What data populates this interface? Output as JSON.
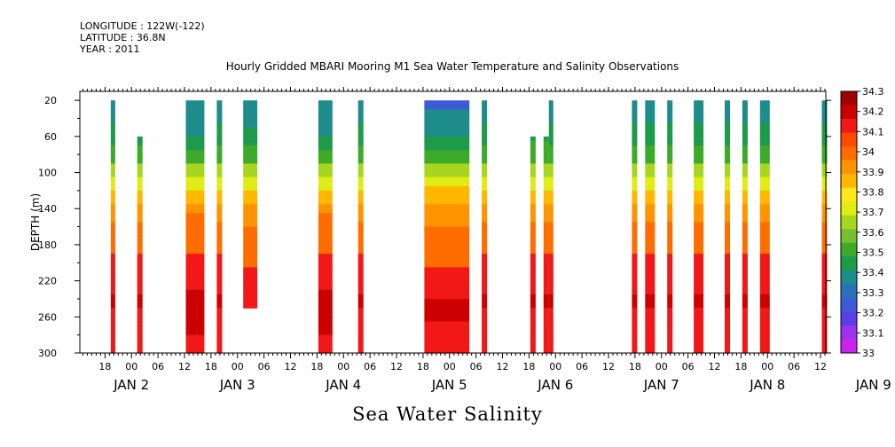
{
  "header": {
    "longitude": "LONGITUDE : 122W(-122)",
    "latitude": "LATITUDE : 36.8N",
    "year": "YEAR : 2011"
  },
  "bottom_title": "Sea Water Salinity",
  "chart_data": {
    "type": "heatmap",
    "title": "Hourly Gridded MBARI Mooring M1 Sea Water Temperature and Salinity Observations",
    "ylabel": "DEPTH (m)",
    "ylim": [
      300,
      10
    ],
    "y_ticks": [
      20,
      60,
      100,
      140,
      180,
      220,
      260,
      300
    ],
    "x_unit": "hours since JAN 1 2011 00:00",
    "xlim": [
      36.3,
      205.2
    ],
    "x_hour_ticks": [
      {
        "t": 42,
        "label": "18"
      },
      {
        "t": 48,
        "label": "00"
      },
      {
        "t": 54,
        "label": "06"
      },
      {
        "t": 60,
        "label": "12"
      },
      {
        "t": 66,
        "label": "18"
      },
      {
        "t": 72,
        "label": "00"
      },
      {
        "t": 78,
        "label": "06"
      },
      {
        "t": 84,
        "label": "12"
      },
      {
        "t": 90,
        "label": "18"
      },
      {
        "t": 96,
        "label": "00"
      },
      {
        "t": 102,
        "label": "06"
      },
      {
        "t": 108,
        "label": "12"
      },
      {
        "t": 114,
        "label": "18"
      },
      {
        "t": 120,
        "label": "00"
      },
      {
        "t": 126,
        "label": "06"
      },
      {
        "t": 132,
        "label": "12"
      },
      {
        "t": 138,
        "label": "18"
      },
      {
        "t": 144,
        "label": "00"
      },
      {
        "t": 150,
        "label": "06"
      },
      {
        "t": 156,
        "label": "12"
      },
      {
        "t": 162,
        "label": "18"
      },
      {
        "t": 168,
        "label": "00"
      },
      {
        "t": 174,
        "label": "06"
      },
      {
        "t": 180,
        "label": "12"
      },
      {
        "t": 186,
        "label": "18"
      },
      {
        "t": 192,
        "label": "00"
      },
      {
        "t": 198,
        "label": "06"
      },
      {
        "t": 204,
        "label": "12"
      }
    ],
    "x_day_labels": [
      {
        "t": 48,
        "label": "JAN  2"
      },
      {
        "t": 72,
        "label": "JAN  3"
      },
      {
        "t": 96,
        "label": "JAN  4"
      },
      {
        "t": 120,
        "label": "JAN  5"
      },
      {
        "t": 144,
        "label": "JAN  6"
      },
      {
        "t": 168,
        "label": "JAN  7"
      },
      {
        "t": 192,
        "label": "JAN  8"
      },
      {
        "t": 216,
        "label": "JAN  9"
      }
    ],
    "colorbar": {
      "levels": [
        33,
        33.1,
        33.2,
        33.3,
        33.4,
        33.5,
        33.6,
        33.7,
        33.8,
        33.9,
        34,
        34.1,
        34.2,
        34.3
      ],
      "colors": [
        "#cc22ee",
        "#9933ee",
        "#5c3ee6",
        "#3a5ad6",
        "#2a72b8",
        "#1f8c8c",
        "#1d9a4a",
        "#3eaa2a",
        "#74c02e",
        "#a8d61e",
        "#dfec16",
        "#ffe71a",
        "#ffb700",
        "#ff9400",
        "#ff6d00",
        "#ff4a00",
        "#f21818",
        "#cc0000",
        "#a00000"
      ]
    },
    "columns": [
      {
        "t0": 43.3,
        "t1": 44.3,
        "top": 20,
        "bottom": 300,
        "pattern": "A"
      },
      {
        "t0": 49.3,
        "t1": 50.5,
        "top": 60,
        "bottom": 300,
        "pattern": "A"
      },
      {
        "t0": 60.3,
        "t1": 64.5,
        "top": 20,
        "bottom": 300,
        "pattern": "B"
      },
      {
        "t0": 67.3,
        "t1": 68.5,
        "top": 20,
        "bottom": 300,
        "pattern": "A"
      },
      {
        "t0": 73.3,
        "t1": 76.5,
        "top": 20,
        "bottom": 250,
        "pattern": "C"
      },
      {
        "t0": 90.3,
        "t1": 93.5,
        "top": 20,
        "bottom": 300,
        "pattern": "B"
      },
      {
        "t0": 99.3,
        "t1": 100.5,
        "top": 20,
        "bottom": 300,
        "pattern": "A"
      },
      {
        "t0": 114.3,
        "t1": 124.5,
        "top": 20,
        "bottom": 300,
        "pattern": "D"
      },
      {
        "t0": 127.3,
        "t1": 128.5,
        "top": 20,
        "bottom": 300,
        "pattern": "A"
      },
      {
        "t0": 138.3,
        "t1": 139.5,
        "top": 60,
        "bottom": 300,
        "pattern": "E"
      },
      {
        "t0": 141.3,
        "t1": 142.5,
        "top": 60,
        "bottom": 300,
        "pattern": "E"
      },
      {
        "t0": 142.5,
        "t1": 143.5,
        "top": 20,
        "bottom": 300,
        "pattern": "A"
      },
      {
        "t0": 161.3,
        "t1": 162.5,
        "top": 20,
        "bottom": 300,
        "pattern": "A"
      },
      {
        "t0": 164.3,
        "t1": 166.5,
        "top": 20,
        "bottom": 300,
        "pattern": "A"
      },
      {
        "t0": 169.3,
        "t1": 170.5,
        "top": 20,
        "bottom": 300,
        "pattern": "A"
      },
      {
        "t0": 175.3,
        "t1": 177.5,
        "top": 20,
        "bottom": 300,
        "pattern": "A"
      },
      {
        "t0": 182.3,
        "t1": 183.5,
        "top": 20,
        "bottom": 300,
        "pattern": "A"
      },
      {
        "t0": 186.3,
        "t1": 187.5,
        "top": 20,
        "bottom": 300,
        "pattern": "A"
      },
      {
        "t0": 190.3,
        "t1": 192.5,
        "top": 20,
        "bottom": 300,
        "pattern": "A"
      },
      {
        "t0": 204.3,
        "t1": 205.5,
        "top": 20,
        "bottom": 300,
        "pattern": "A"
      }
    ],
    "profiles": {
      "A": [
        {
          "d": 20,
          "v": 33.33
        },
        {
          "d": 40,
          "v": 33.38
        },
        {
          "d": 60,
          "v": 33.45
        },
        {
          "d": 80,
          "v": 33.55
        },
        {
          "d": 100,
          "v": 33.68
        },
        {
          "d": 120,
          "v": 33.8
        },
        {
          "d": 140,
          "v": 33.92
        },
        {
          "d": 160,
          "v": 34.02
        },
        {
          "d": 190,
          "v": 34.1
        },
        {
          "d": 220,
          "v": 34.17
        },
        {
          "d": 245,
          "v": 34.22
        },
        {
          "d": 270,
          "v": 34.15
        },
        {
          "d": 300,
          "v": 34.15
        }
      ],
      "B": [
        {
          "d": 20,
          "v": 33.32
        },
        {
          "d": 50,
          "v": 33.34
        },
        {
          "d": 70,
          "v": 33.45
        },
        {
          "d": 90,
          "v": 33.6
        },
        {
          "d": 110,
          "v": 33.75
        },
        {
          "d": 130,
          "v": 33.88
        },
        {
          "d": 150,
          "v": 34.02
        },
        {
          "d": 180,
          "v": 34.08
        },
        {
          "d": 210,
          "v": 34.13
        },
        {
          "d": 230,
          "v": 34.2
        },
        {
          "d": 250,
          "v": 34.26
        },
        {
          "d": 270,
          "v": 34.22
        },
        {
          "d": 300,
          "v": 34.15
        }
      ],
      "C": [
        {
          "d": 20,
          "v": 33.32
        },
        {
          "d": 40,
          "v": 33.35
        },
        {
          "d": 60,
          "v": 33.45
        },
        {
          "d": 80,
          "v": 33.55
        },
        {
          "d": 100,
          "v": 33.68
        },
        {
          "d": 120,
          "v": 33.8
        },
        {
          "d": 140,
          "v": 33.92
        },
        {
          "d": 160,
          "v": 34.0
        },
        {
          "d": 190,
          "v": 34.08
        },
        {
          "d": 220,
          "v": 34.12
        },
        {
          "d": 250,
          "v": 34.16
        }
      ],
      "D": [
        {
          "d": 20,
          "v": 33.28
        },
        {
          "d": 40,
          "v": 33.33
        },
        {
          "d": 60,
          "v": 33.4
        },
        {
          "d": 80,
          "v": 33.52
        },
        {
          "d": 100,
          "v": 33.68
        },
        {
          "d": 120,
          "v": 33.82
        },
        {
          "d": 140,
          "v": 33.93
        },
        {
          "d": 160,
          "v": 34.0
        },
        {
          "d": 185,
          "v": 34.06
        },
        {
          "d": 210,
          "v": 34.11
        },
        {
          "d": 230,
          "v": 34.17
        },
        {
          "d": 250,
          "v": 34.24
        },
        {
          "d": 270,
          "v": 34.18
        },
        {
          "d": 300,
          "v": 34.15
        }
      ],
      "E": [
        {
          "d": 60,
          "v": 33.48
        },
        {
          "d": 80,
          "v": 33.55
        },
        {
          "d": 100,
          "v": 33.68
        },
        {
          "d": 120,
          "v": 33.8
        },
        {
          "d": 140,
          "v": 33.92
        },
        {
          "d": 160,
          "v": 34.02
        },
        {
          "d": 190,
          "v": 34.1
        },
        {
          "d": 220,
          "v": 34.17
        },
        {
          "d": 245,
          "v": 34.22
        },
        {
          "d": 270,
          "v": 34.15
        },
        {
          "d": 300,
          "v": 34.15
        }
      ]
    }
  }
}
